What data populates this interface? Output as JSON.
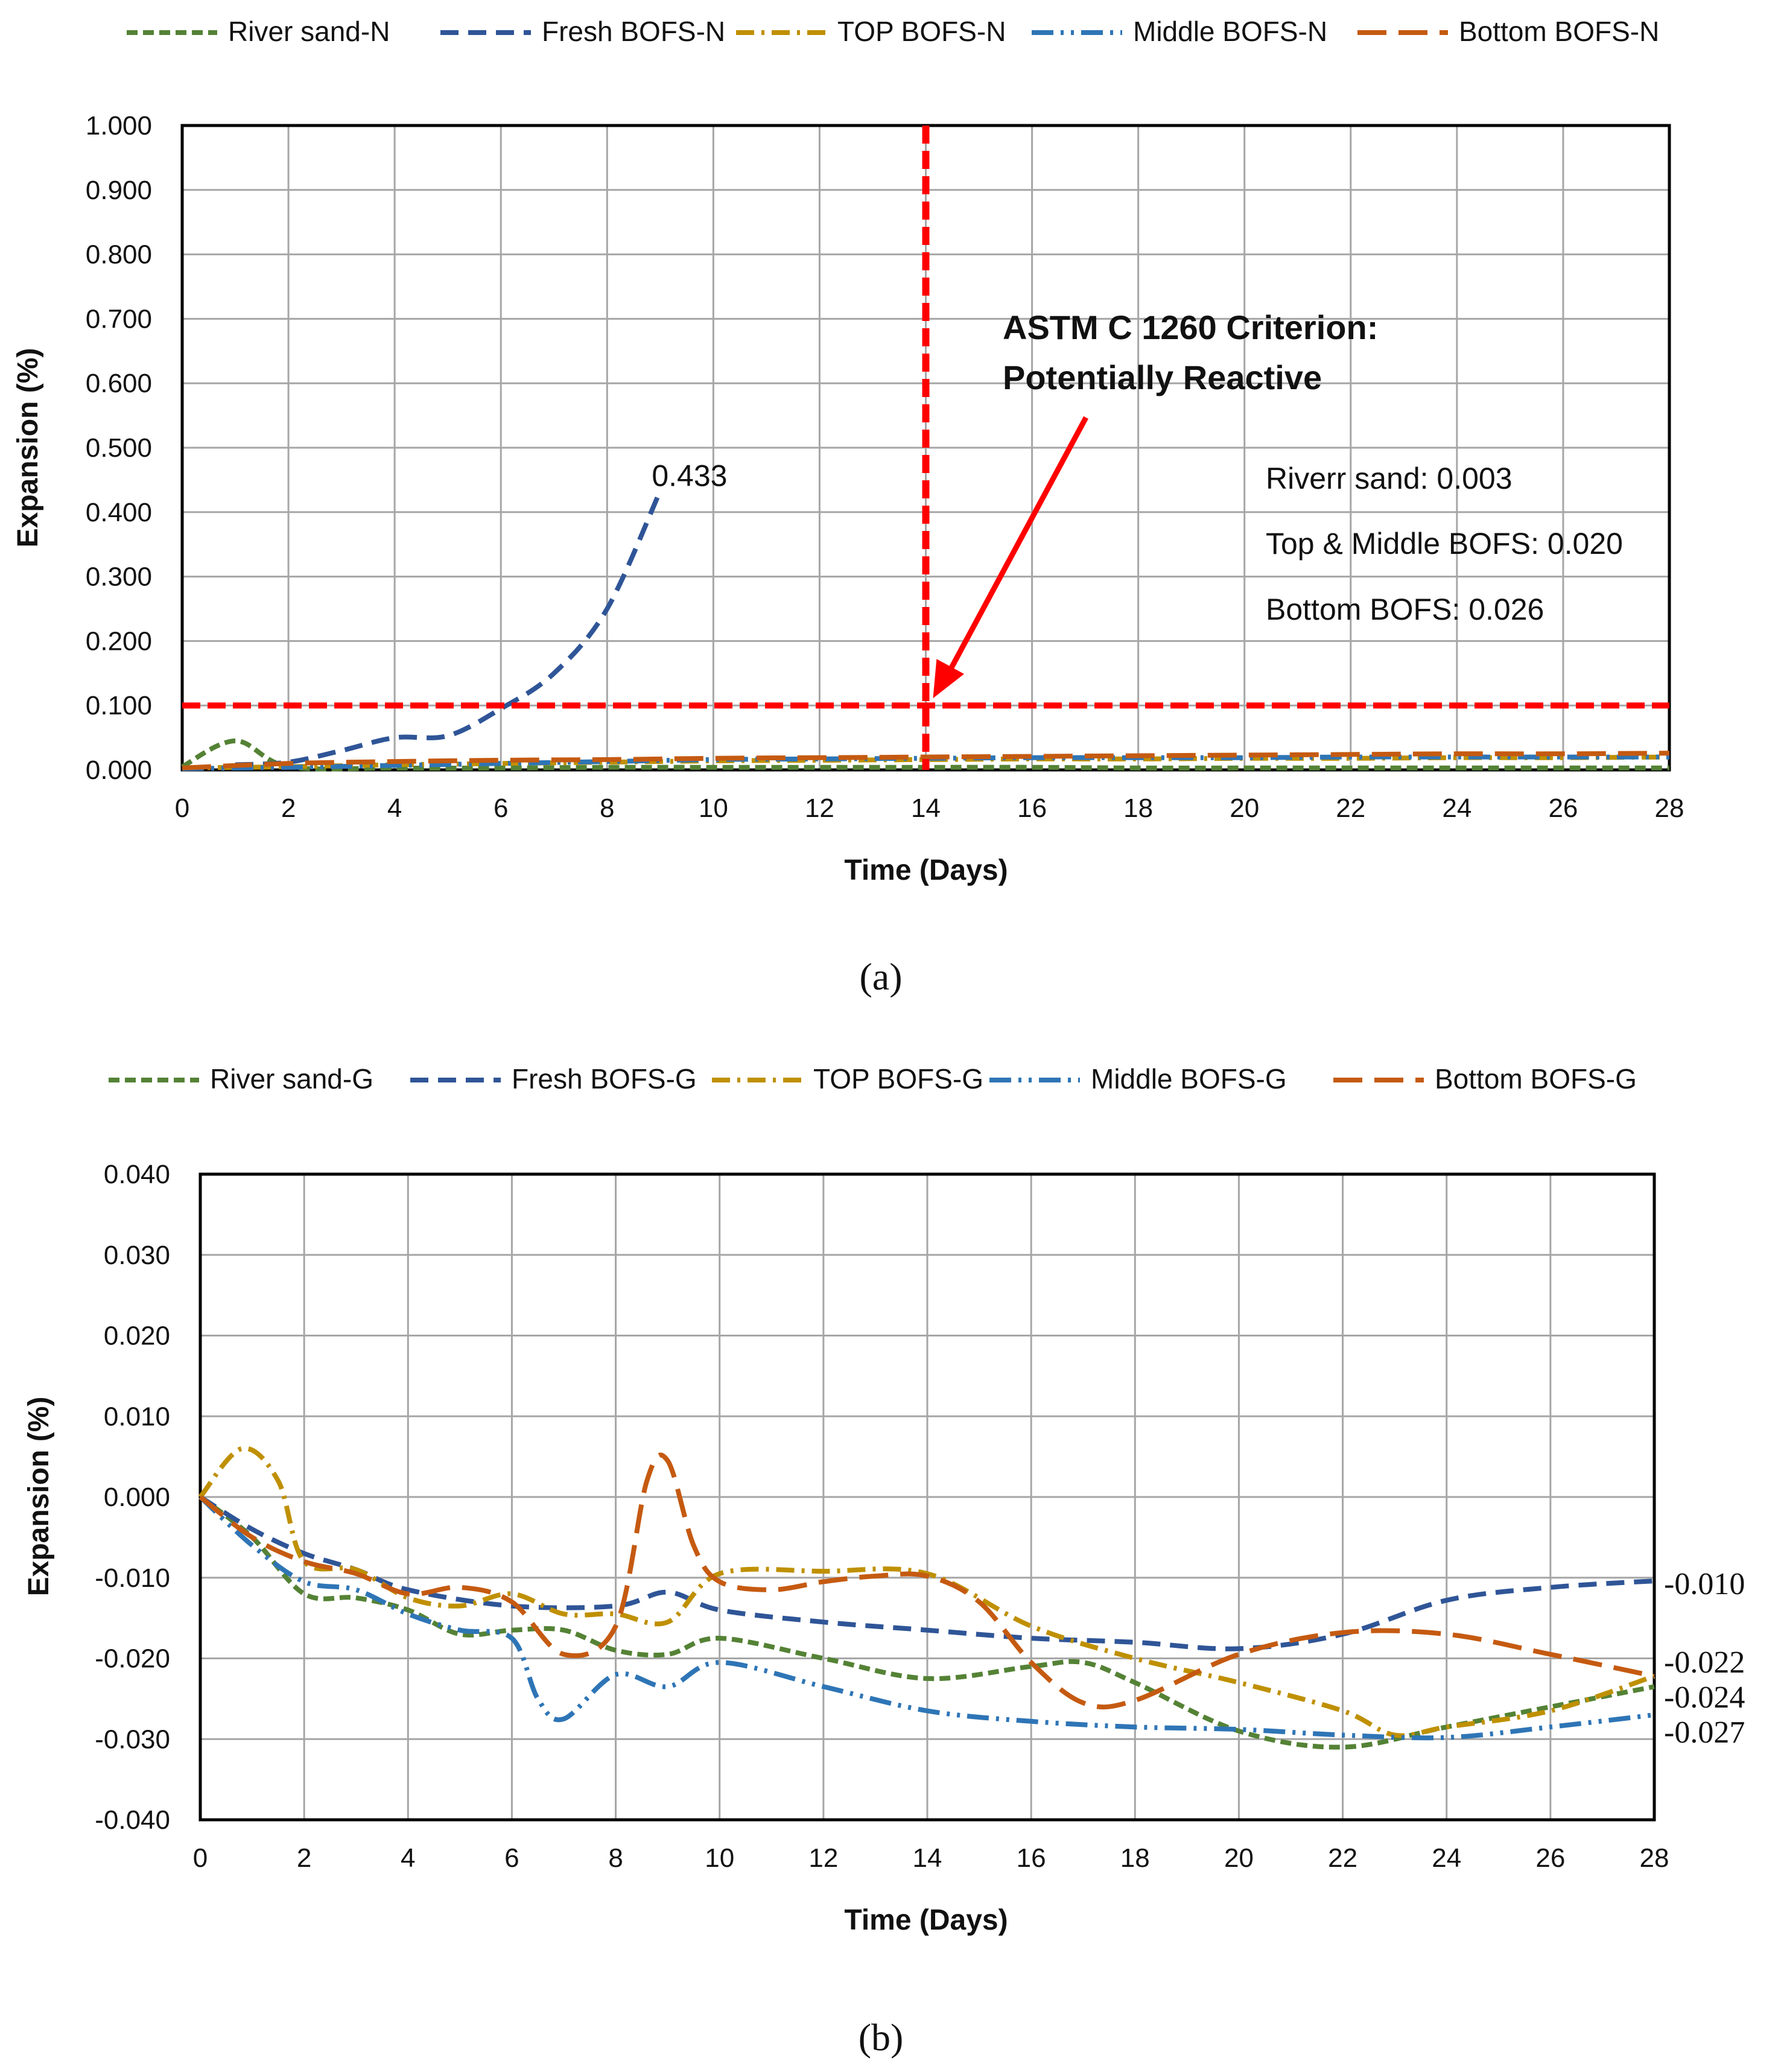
{
  "chart_data": [
    {
      "panel": "a",
      "type": "line",
      "caption": "(a)",
      "xlabel": "Time (Days)",
      "ylabel": "Expansion (%)",
      "xlim": [
        0,
        28
      ],
      "ylim": [
        0,
        1
      ],
      "xticks": [
        "0",
        "2",
        "4",
        "6",
        "8",
        "10",
        "12",
        "14",
        "16",
        "18",
        "20",
        "22",
        "24",
        "26",
        "28"
      ],
      "yticks": [
        "0.000",
        "0.100",
        "0.200",
        "0.300",
        "0.400",
        "0.500",
        "0.600",
        "0.700",
        "0.800",
        "0.900",
        "1.000"
      ],
      "grid": true,
      "legend_position": "top",
      "series": [
        {
          "name": "River sand-N",
          "color": "#548235",
          "dash": "dash-short",
          "x": [
            0,
            1,
            2,
            4,
            6,
            8,
            10,
            12,
            14,
            16,
            18,
            20,
            22,
            24,
            26,
            28
          ],
          "y": [
            0.005,
            0.045,
            0.005,
            0.003,
            0.003,
            0.004,
            0.004,
            0.004,
            0.004,
            0.004,
            0.003,
            0.003,
            0.003,
            0.003,
            0.003,
            0.003
          ]
        },
        {
          "name": "Fresh BOFS-N",
          "color": "#2F5597",
          "dash": "dash",
          "x": [
            1,
            2,
            3,
            4,
            5,
            6,
            7,
            8,
            9
          ],
          "y": [
            0.008,
            0.012,
            0.03,
            0.05,
            0.053,
            0.095,
            0.15,
            0.25,
            0.433
          ]
        },
        {
          "name": "TOP BOFS-N",
          "color": "#BF9000",
          "dash": "dash-dot",
          "x": [
            0,
            2,
            4,
            6,
            8,
            10,
            12,
            14,
            16,
            18,
            20,
            22,
            24,
            26,
            28
          ],
          "y": [
            0.003,
            0.005,
            0.008,
            0.01,
            0.012,
            0.014,
            0.015,
            0.016,
            0.017,
            0.017,
            0.018,
            0.018,
            0.019,
            0.019,
            0.02
          ]
        },
        {
          "name": "Middle BOFS-N",
          "color": "#2E75B6",
          "dash": "dash-dot-dot",
          "x": [
            0,
            2,
            4,
            6,
            8,
            10,
            12,
            14,
            16,
            18,
            20,
            22,
            24,
            26,
            28
          ],
          "y": [
            0.002,
            0.004,
            0.007,
            0.01,
            0.013,
            0.016,
            0.017,
            0.018,
            0.019,
            0.019,
            0.019,
            0.02,
            0.02,
            0.02,
            0.02
          ]
        },
        {
          "name": "Bottom BOFS-N",
          "color": "#C55A11",
          "dash": "long-dash",
          "x": [
            0,
            2,
            4,
            6,
            8,
            10,
            12,
            14,
            16,
            18,
            20,
            22,
            24,
            26,
            28
          ],
          "y": [
            0.003,
            0.01,
            0.013,
            0.015,
            0.016,
            0.018,
            0.019,
            0.02,
            0.021,
            0.022,
            0.023,
            0.024,
            0.025,
            0.025,
            0.026
          ]
        }
      ],
      "reference_lines": [
        {
          "orientation": "horizontal",
          "value": 0.1,
          "color": "#FF0000"
        },
        {
          "orientation": "vertical",
          "value": 14,
          "color": "#FF0000"
        }
      ],
      "annotations": {
        "peak_label": {
          "text": "0.433",
          "x": 9,
          "y": 0.433
        },
        "criterion_line1": "ASTM C 1260 Criterion:",
        "criterion_line2": "Potentially Reactive",
        "criterion_arrow_target": {
          "x": 14,
          "y": 0.1
        },
        "notes": [
          "Riverr sand: 0.003",
          "Top & Middle BOFS: 0.020",
          "Bottom BOFS:  0.026"
        ]
      }
    },
    {
      "panel": "b",
      "type": "line",
      "caption": "(b)",
      "xlabel": "Time (Days)",
      "ylabel": "Expansion (%)",
      "xlim": [
        0,
        28
      ],
      "ylim": [
        -0.04,
        0.04
      ],
      "xticks": [
        "0",
        "2",
        "4",
        "6",
        "8",
        "10",
        "12",
        "14",
        "16",
        "18",
        "20",
        "22",
        "24",
        "26",
        "28"
      ],
      "yticks": [
        "-0.040",
        "-0.030",
        "-0.020",
        "-0.010",
        "0.000",
        "0.010",
        "0.020",
        "0.030",
        "0.040"
      ],
      "grid": true,
      "legend_position": "top",
      "series": [
        {
          "name": "River sand-G",
          "color": "#548235",
          "dash": "dash-short",
          "x": [
            0,
            1,
            2,
            3,
            4,
            5,
            6,
            7,
            8,
            9,
            10,
            12,
            14,
            16,
            17,
            18,
            20,
            22,
            24,
            26,
            28
          ],
          "y": [
            0,
            -0.005,
            -0.012,
            -0.0125,
            -0.014,
            -0.017,
            -0.0165,
            -0.0165,
            -0.019,
            -0.0195,
            -0.0175,
            -0.02,
            -0.0225,
            -0.021,
            -0.0205,
            -0.023,
            -0.029,
            -0.031,
            -0.0285,
            -0.026,
            -0.0235
          ]
        },
        {
          "name": "Fresh BOFS-G",
          "color": "#2F5597",
          "dash": "dash",
          "x": [
            0,
            1,
            2,
            3,
            4,
            6,
            8,
            9,
            10,
            12,
            14,
            16,
            18,
            20,
            22,
            24,
            26,
            28
          ],
          "y": [
            0,
            -0.004,
            -0.007,
            -0.009,
            -0.0115,
            -0.0135,
            -0.0135,
            -0.0118,
            -0.014,
            -0.0155,
            -0.0165,
            -0.0175,
            -0.018,
            -0.0188,
            -0.017,
            -0.0128,
            -0.0112,
            -0.0104
          ]
        },
        {
          "name": "TOP BOFS-G",
          "color": "#BF9000",
          "dash": "dash-dot",
          "x": [
            0,
            0.8,
            1.5,
            2,
            3,
            4,
            5,
            6,
            7,
            8,
            9,
            10,
            12,
            14,
            16,
            18,
            20,
            22,
            23,
            24,
            26,
            28
          ],
          "y": [
            0,
            0.006,
            0.002,
            -0.008,
            -0.009,
            -0.0125,
            -0.0135,
            -0.012,
            -0.0145,
            -0.0145,
            -0.0155,
            -0.0095,
            -0.0092,
            -0.0095,
            -0.016,
            -0.02,
            -0.023,
            -0.0265,
            -0.0295,
            -0.0285,
            -0.0265,
            -0.0222
          ]
        },
        {
          "name": "Middle BOFS-G",
          "color": "#2E75B6",
          "dash": "dash-dot-dot",
          "x": [
            0,
            1,
            2,
            3,
            4,
            5,
            6,
            6.5,
            7,
            8,
            9,
            10,
            12,
            14,
            16,
            18,
            20,
            22,
            24,
            26,
            28
          ],
          "y": [
            0,
            -0.006,
            -0.0105,
            -0.0115,
            -0.0145,
            -0.0165,
            -0.0175,
            -0.025,
            -0.0275,
            -0.022,
            -0.0235,
            -0.0205,
            -0.0235,
            -0.0265,
            -0.0278,
            -0.0285,
            -0.0288,
            -0.0295,
            -0.0298,
            -0.0285,
            -0.027
          ]
        },
        {
          "name": "Bottom BOFS-G",
          "color": "#C55A11",
          "dash": "long-dash",
          "x": [
            0,
            1,
            2,
            3,
            4,
            5,
            6,
            7,
            8,
            8.6,
            9,
            9.5,
            10,
            11,
            12,
            13,
            14,
            15,
            16,
            17,
            18,
            20,
            22,
            24,
            26,
            28
          ],
          "y": [
            0,
            -0.005,
            -0.008,
            -0.0095,
            -0.012,
            -0.0112,
            -0.013,
            -0.0195,
            -0.016,
            0.002,
            0.0045,
            -0.006,
            -0.0105,
            -0.0115,
            -0.0105,
            -0.0098,
            -0.0098,
            -0.013,
            -0.0205,
            -0.0255,
            -0.0252,
            -0.0195,
            -0.0168,
            -0.017,
            -0.0195,
            -0.0222
          ]
        }
      ],
      "end_labels": [
        "-0.010",
        "-0.022",
        "-0.024",
        "-0.027"
      ]
    }
  ]
}
